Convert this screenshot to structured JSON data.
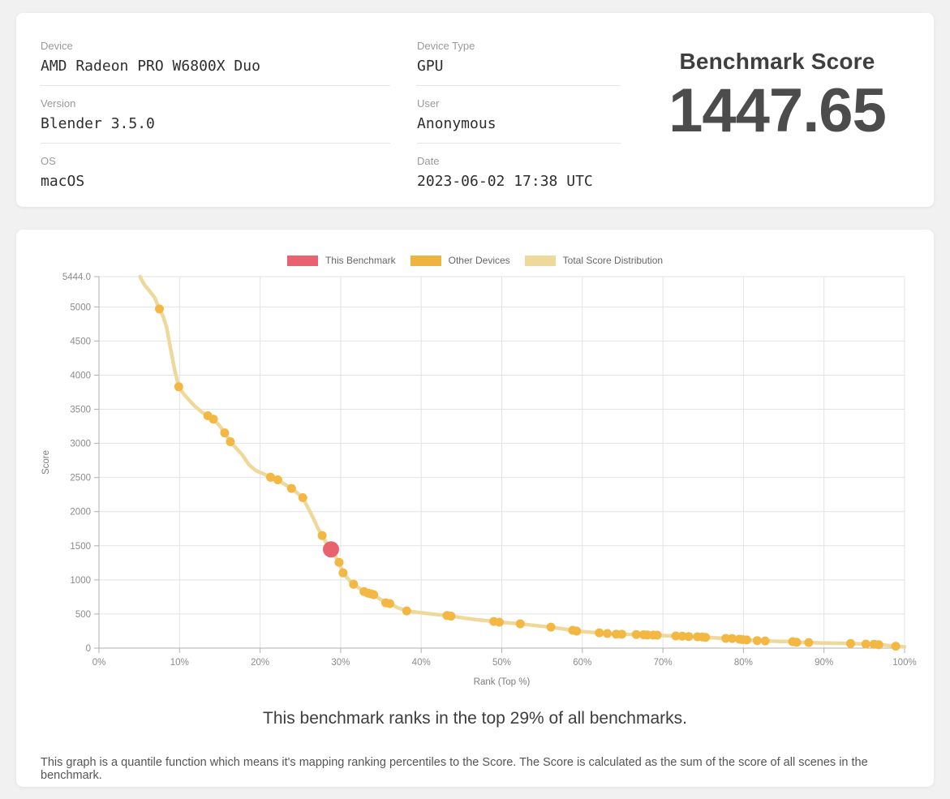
{
  "info_card": {
    "fields": [
      {
        "label": "Device",
        "value": "AMD Radeon PRO W6800X Duo"
      },
      {
        "label": "Device Type",
        "value": "GPU"
      },
      {
        "label": "Version",
        "value": "Blender 3.5.0"
      },
      {
        "label": "User",
        "value": "Anonymous"
      },
      {
        "label": "OS",
        "value": "macOS"
      },
      {
        "label": "Date",
        "value": "2023-06-02 17:38 UTC"
      }
    ],
    "score_title": "Benchmark Score",
    "score_value": "1447.65"
  },
  "chart_card": {
    "legend": [
      {
        "label": "This Benchmark",
        "color": "#e8636f"
      },
      {
        "label": "Other Devices",
        "color": "#efb340"
      },
      {
        "label": "Total Score Distribution",
        "color": "#eed89a"
      }
    ],
    "rank_note": "This benchmark ranks in the top 29% of all benchmarks.",
    "footnote": "This graph is a quantile function which means it's mapping ranking percentiles to the Score. The Score is calculated as the sum of the score of all scenes in the benchmark."
  },
  "chart_data": {
    "type": "line",
    "title": "",
    "xlabel": "Rank (Top %)",
    "ylabel": "Score",
    "x_range": [
      0,
      100
    ],
    "y_range": [
      0,
      5444
    ],
    "grid": true,
    "legend_position": "top-center",
    "x_ticks": [
      {
        "value": 0,
        "label": "0%"
      },
      {
        "value": 10,
        "label": "10%"
      },
      {
        "value": 20,
        "label": "20%"
      },
      {
        "value": 30,
        "label": "30%"
      },
      {
        "value": 40,
        "label": "40%"
      },
      {
        "value": 50,
        "label": "50%"
      },
      {
        "value": 60,
        "label": "60%"
      },
      {
        "value": 70,
        "label": "70%"
      },
      {
        "value": 80,
        "label": "80%"
      },
      {
        "value": 90,
        "label": "90%"
      },
      {
        "value": 100,
        "label": "100%"
      }
    ],
    "y_ticks": [
      {
        "value": 0,
        "label": "0"
      },
      {
        "value": 500,
        "label": "500"
      },
      {
        "value": 1000,
        "label": "1000"
      },
      {
        "value": 1500,
        "label": "1500"
      },
      {
        "value": 2000,
        "label": "2000"
      },
      {
        "value": 2500,
        "label": "2500"
      },
      {
        "value": 3000,
        "label": "3000"
      },
      {
        "value": 3500,
        "label": "3500"
      },
      {
        "value": 4000,
        "label": "4000"
      },
      {
        "value": 4500,
        "label": "4500"
      },
      {
        "value": 5000,
        "label": "5000"
      },
      {
        "value": 5444,
        "label": "5444.0"
      }
    ],
    "line_color": "#eed89a",
    "dot_color": "#f3b843",
    "highlight_color": "#e8636f",
    "grid_color": "#e3e3e3",
    "axis_color": "#b0b0b0",
    "tick_label_color": "#8b8b8b",
    "axis_title_color": "#7d7d7d",
    "series": [
      {
        "name": "Total Score Distribution",
        "points": [
          [
            5.1,
            5444
          ],
          [
            5.6,
            5330
          ],
          [
            6.3,
            5230
          ],
          [
            6.9,
            5140
          ],
          [
            7.5,
            4970
          ],
          [
            8.0,
            4850
          ],
          [
            8.4,
            4700
          ],
          [
            8.9,
            4380
          ],
          [
            9.4,
            4080
          ],
          [
            9.9,
            3830
          ],
          [
            10.4,
            3740
          ],
          [
            11.0,
            3660
          ],
          [
            11.9,
            3545
          ],
          [
            12.8,
            3455
          ],
          [
            13.5,
            3405
          ],
          [
            14.2,
            3355
          ],
          [
            15.0,
            3255
          ],
          [
            15.6,
            3155
          ],
          [
            16.3,
            3025
          ],
          [
            17.0,
            2935
          ],
          [
            17.8,
            2830
          ],
          [
            18.6,
            2690
          ],
          [
            19.5,
            2600
          ],
          [
            20.4,
            2555
          ],
          [
            21.3,
            2505
          ],
          [
            22.2,
            2467
          ],
          [
            23.0,
            2405
          ],
          [
            23.9,
            2340
          ],
          [
            24.6,
            2275
          ],
          [
            25.3,
            2205
          ],
          [
            26.0,
            2045
          ],
          [
            26.7,
            1880
          ],
          [
            27.2,
            1750
          ],
          [
            27.7,
            1650
          ],
          [
            28.2,
            1545
          ],
          [
            28.8,
            1448
          ],
          [
            29.3,
            1350
          ],
          [
            29.8,
            1257
          ],
          [
            30.3,
            1103
          ],
          [
            31.0,
            1005
          ],
          [
            31.6,
            937
          ],
          [
            32.3,
            878
          ],
          [
            32.9,
            830
          ],
          [
            33.4,
            806
          ],
          [
            33.8,
            795
          ],
          [
            34.1,
            783
          ],
          [
            34.9,
            718
          ],
          [
            35.6,
            665
          ],
          [
            36.1,
            652
          ],
          [
            37.1,
            592
          ],
          [
            38.2,
            546
          ],
          [
            39.6,
            524
          ],
          [
            41.2,
            502
          ],
          [
            43.4,
            474
          ],
          [
            45.5,
            438
          ],
          [
            47.2,
            412
          ],
          [
            49.0,
            391
          ],
          [
            49.7,
            380
          ],
          [
            51.0,
            368
          ],
          [
            52.3,
            356
          ],
          [
            54.2,
            330
          ],
          [
            56.1,
            308
          ],
          [
            57.5,
            284
          ],
          [
            58.8,
            261
          ],
          [
            59.3,
            250
          ],
          [
            60.6,
            236
          ],
          [
            62.1,
            225
          ],
          [
            63.1,
            214
          ],
          [
            64.2,
            205
          ],
          [
            65.5,
            202
          ],
          [
            66.7,
            200
          ],
          [
            68.0,
            193
          ],
          [
            69.2,
            189
          ],
          [
            70.4,
            183
          ],
          [
            71.6,
            178
          ],
          [
            72.8,
            172
          ],
          [
            74.3,
            166
          ],
          [
            75.2,
            158
          ],
          [
            76.5,
            150
          ],
          [
            77.8,
            143
          ],
          [
            78.6,
            141
          ],
          [
            79.5,
            131
          ],
          [
            80.4,
            120
          ],
          [
            81.7,
            110
          ],
          [
            82.7,
            106
          ],
          [
            84.2,
            100
          ],
          [
            86.1,
            95
          ],
          [
            86.6,
            86
          ],
          [
            88.1,
            82
          ],
          [
            89.6,
            76
          ],
          [
            91.2,
            72
          ],
          [
            93.3,
            68
          ],
          [
            95.2,
            60
          ],
          [
            96.2,
            57
          ],
          [
            96.7,
            50
          ],
          [
            98.0,
            39
          ],
          [
            98.9,
            28
          ],
          [
            100,
            18
          ]
        ]
      },
      {
        "name": "Other Devices",
        "points": [
          [
            7.5,
            4970
          ],
          [
            9.9,
            3830
          ],
          [
            13.5,
            3405
          ],
          [
            14.2,
            3355
          ],
          [
            15.6,
            3155
          ],
          [
            16.3,
            3025
          ],
          [
            21.3,
            2505
          ],
          [
            22.2,
            2467
          ],
          [
            23.9,
            2340
          ],
          [
            25.3,
            2205
          ],
          [
            27.7,
            1650
          ],
          [
            29.8,
            1257
          ],
          [
            30.3,
            1103
          ],
          [
            31.6,
            937
          ],
          [
            32.9,
            830
          ],
          [
            33.4,
            806
          ],
          [
            33.8,
            795
          ],
          [
            34.1,
            783
          ],
          [
            35.6,
            665
          ],
          [
            36.1,
            652
          ],
          [
            38.2,
            546
          ],
          [
            43.2,
            478
          ],
          [
            43.7,
            470
          ],
          [
            49.0,
            391
          ],
          [
            49.7,
            380
          ],
          [
            52.3,
            356
          ],
          [
            56.1,
            308
          ],
          [
            58.8,
            261
          ],
          [
            59.3,
            250
          ],
          [
            62.1,
            225
          ],
          [
            63.1,
            214
          ],
          [
            64.2,
            205
          ],
          [
            64.9,
            203
          ],
          [
            66.7,
            200
          ],
          [
            67.6,
            196
          ],
          [
            68.1,
            193
          ],
          [
            68.8,
            191
          ],
          [
            69.3,
            190
          ],
          [
            71.6,
            178
          ],
          [
            72.4,
            176
          ],
          [
            73.2,
            170
          ],
          [
            74.3,
            166
          ],
          [
            74.9,
            164
          ],
          [
            75.3,
            158
          ],
          [
            77.8,
            143
          ],
          [
            78.6,
            141
          ],
          [
            79.5,
            131
          ],
          [
            79.9,
            125
          ],
          [
            80.4,
            120
          ],
          [
            81.7,
            110
          ],
          [
            82.7,
            106
          ],
          [
            86.1,
            95
          ],
          [
            86.6,
            86
          ],
          [
            88.1,
            82
          ],
          [
            93.3,
            68
          ],
          [
            95.2,
            60
          ],
          [
            96.2,
            57
          ],
          [
            96.8,
            50
          ],
          [
            98.9,
            28
          ]
        ]
      },
      {
        "name": "This Benchmark",
        "points": [
          [
            28.8,
            1447.65
          ]
        ]
      }
    ]
  }
}
